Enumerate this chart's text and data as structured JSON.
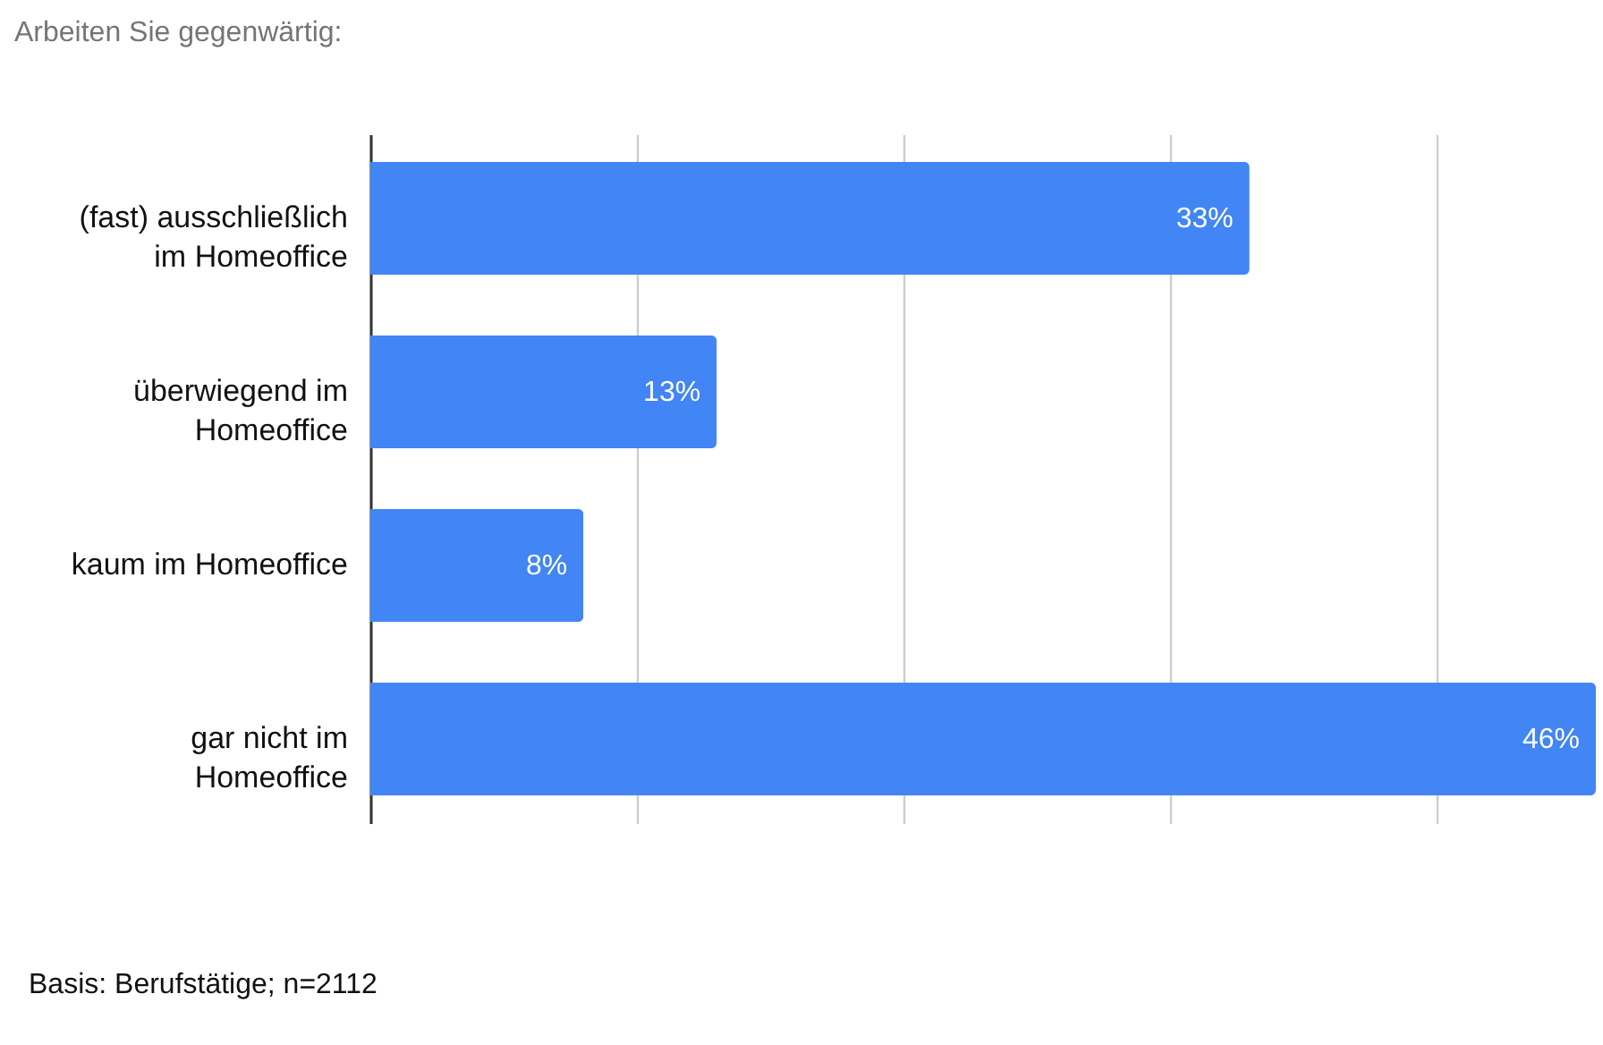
{
  "chart_data": {
    "type": "bar",
    "orientation": "horizontal",
    "title": "Arbeiten Sie gegenwärtig:",
    "categories": [
      "(fast) ausschließlich\nim Homeoffice",
      "überwiegend im\nHomeoffice",
      "kaum im Homeoffice",
      "gar nicht im\nHomeoffice"
    ],
    "values": [
      33,
      13,
      8,
      46
    ],
    "value_labels": [
      "33%",
      "13%",
      "8%",
      "46%"
    ],
    "color": "#4285f4",
    "xlim": [
      0,
      46
    ],
    "xticks": [
      {
        "value": 0,
        "label": null
      },
      {
        "value": 10,
        "label": null
      },
      {
        "value": 20,
        "label": null
      },
      {
        "value": 30,
        "label": null
      },
      {
        "value": 40,
        "label": null
      }
    ],
    "tick_labels": "y",
    "grid": "x",
    "annotations": [
      "Basis: Berufstätige; n=2112"
    ]
  }
}
